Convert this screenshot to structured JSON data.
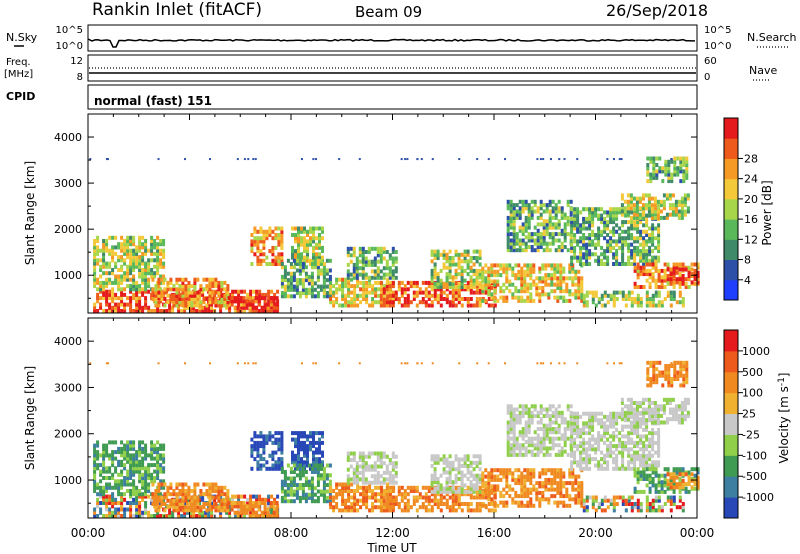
{
  "header": {
    "station": "Rankin Inlet (fitACF)",
    "beam": "Beam 09",
    "date": "26/Sep/2018"
  },
  "panels": {
    "nsky": {
      "left_label": "N.Sky",
      "left_ticks": [
        "10^5",
        "10^0"
      ],
      "right_label": "N.Search",
      "right_ticks": [
        "10^5",
        "10^0"
      ]
    },
    "freq": {
      "left_label_1": "Freq.",
      "left_label_2": "[MHz]",
      "left_ticks": [
        "12",
        "8"
      ],
      "right_label": "Nave",
      "right_ticks": [
        "60",
        "0"
      ]
    },
    "cpid": {
      "label": "CPID",
      "value": "normal (fast) 151"
    }
  },
  "chart_data": [
    {
      "type": "heatmap",
      "name": "power",
      "ylabel": "Slant Range [km]",
      "ylim": [
        180,
        4500
      ],
      "yticks": [
        "1000",
        "2000",
        "3000",
        "4000"
      ],
      "xlim": [
        "00:00",
        "24:00"
      ],
      "colorbar": {
        "label": "Power [dB]",
        "ticks": [
          "4",
          "8",
          "12",
          "16",
          "20",
          "24",
          "28"
        ],
        "colors": [
          "#1f3fff",
          "#2c4fa8",
          "#3f8a68",
          "#58b85a",
          "#a8d64a",
          "#f3c93a",
          "#f59a25",
          "#ee5a1c",
          "#e41a1c"
        ]
      }
    },
    {
      "type": "heatmap",
      "name": "velocity",
      "ylabel": "Slant Range [km]",
      "ylim": [
        180,
        4500
      ],
      "yticks": [
        "1000",
        "2000",
        "3000",
        "4000"
      ],
      "xlim": [
        "00:00",
        "24:00"
      ],
      "colorbar": {
        "label": "Velocity [m s",
        "label_sup": "-1",
        "label_end": "]",
        "ticks": [
          "1000",
          "500",
          "100",
          "25",
          "-25",
          "-100",
          "-500",
          "-1000"
        ],
        "colors": [
          "#2848b8",
          "#3d7fa0",
          "#3f9a52",
          "#8fcf4a",
          "#c8c8c8",
          "#f0b030",
          "#f08a20",
          "#ee5a1c",
          "#e41a1c"
        ]
      }
    }
  ],
  "x_axis": {
    "ticks": [
      "00:00",
      "04:00",
      "08:00",
      "12:00",
      "16:00",
      "20:00",
      "00:00"
    ],
    "label": "Time UT"
  }
}
